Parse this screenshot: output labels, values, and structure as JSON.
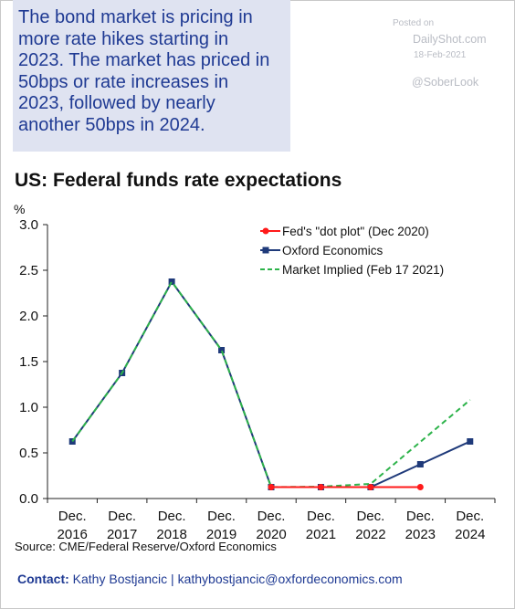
{
  "callout": {
    "lines": [
      "The bond market is pricing in",
      "more rate hikes starting in",
      "2023. The market has priced in",
      "50bps or rate increases in",
      "2023, followed by nearly",
      "another 50bps in 2024."
    ]
  },
  "watermark": {
    "posted": "Posted on",
    "site": "DailyShot.com",
    "date": "18-Feb-2021",
    "handle": "@SoberLook"
  },
  "chart_data": {
    "type": "line",
    "title": "US: Federal funds rate expectations",
    "ylabel": "%",
    "ylim": [
      0,
      3.0
    ],
    "yticks": [
      "0.0",
      "0.5",
      "1.0",
      "1.5",
      "2.0",
      "2.5",
      "3.0"
    ],
    "categories": [
      [
        "Dec.",
        "2016"
      ],
      [
        "Dec.",
        "2017"
      ],
      [
        "Dec.",
        "2018"
      ],
      [
        "Dec.",
        "2019"
      ],
      [
        "Dec.",
        "2020"
      ],
      [
        "Dec.",
        "2021"
      ],
      [
        "Dec.",
        "2022"
      ],
      [
        "Dec.",
        "2023"
      ],
      [
        "Dec.",
        "2024"
      ]
    ],
    "legend_position": "top-right",
    "series": [
      {
        "name": "Fed's \"dot plot\" (Dec 2020)",
        "color": "#ff1a1a",
        "style": "solid-marker-circle",
        "values": [
          null,
          null,
          null,
          null,
          0.125,
          0.125,
          0.125,
          0.125,
          null
        ]
      },
      {
        "name": "Oxford Economics",
        "color": "#1f3a7a",
        "style": "solid-marker-square",
        "values": [
          0.625,
          1.375,
          2.375,
          1.625,
          0.125,
          0.125,
          0.125,
          0.375,
          0.625
        ]
      },
      {
        "name": "Market Implied (Feb 17 2021)",
        "color": "#2db34a",
        "style": "dashed",
        "values": [
          0.625,
          1.375,
          2.375,
          1.625,
          0.125,
          0.13,
          0.16,
          0.62,
          1.08
        ]
      }
    ]
  },
  "source": "Source: CME/Federal Reserve/Oxford Economics",
  "contact": {
    "label": "Contact:",
    "text": " Kathy Bostjancic | kathybostjancic@oxfordeconomics.com"
  }
}
